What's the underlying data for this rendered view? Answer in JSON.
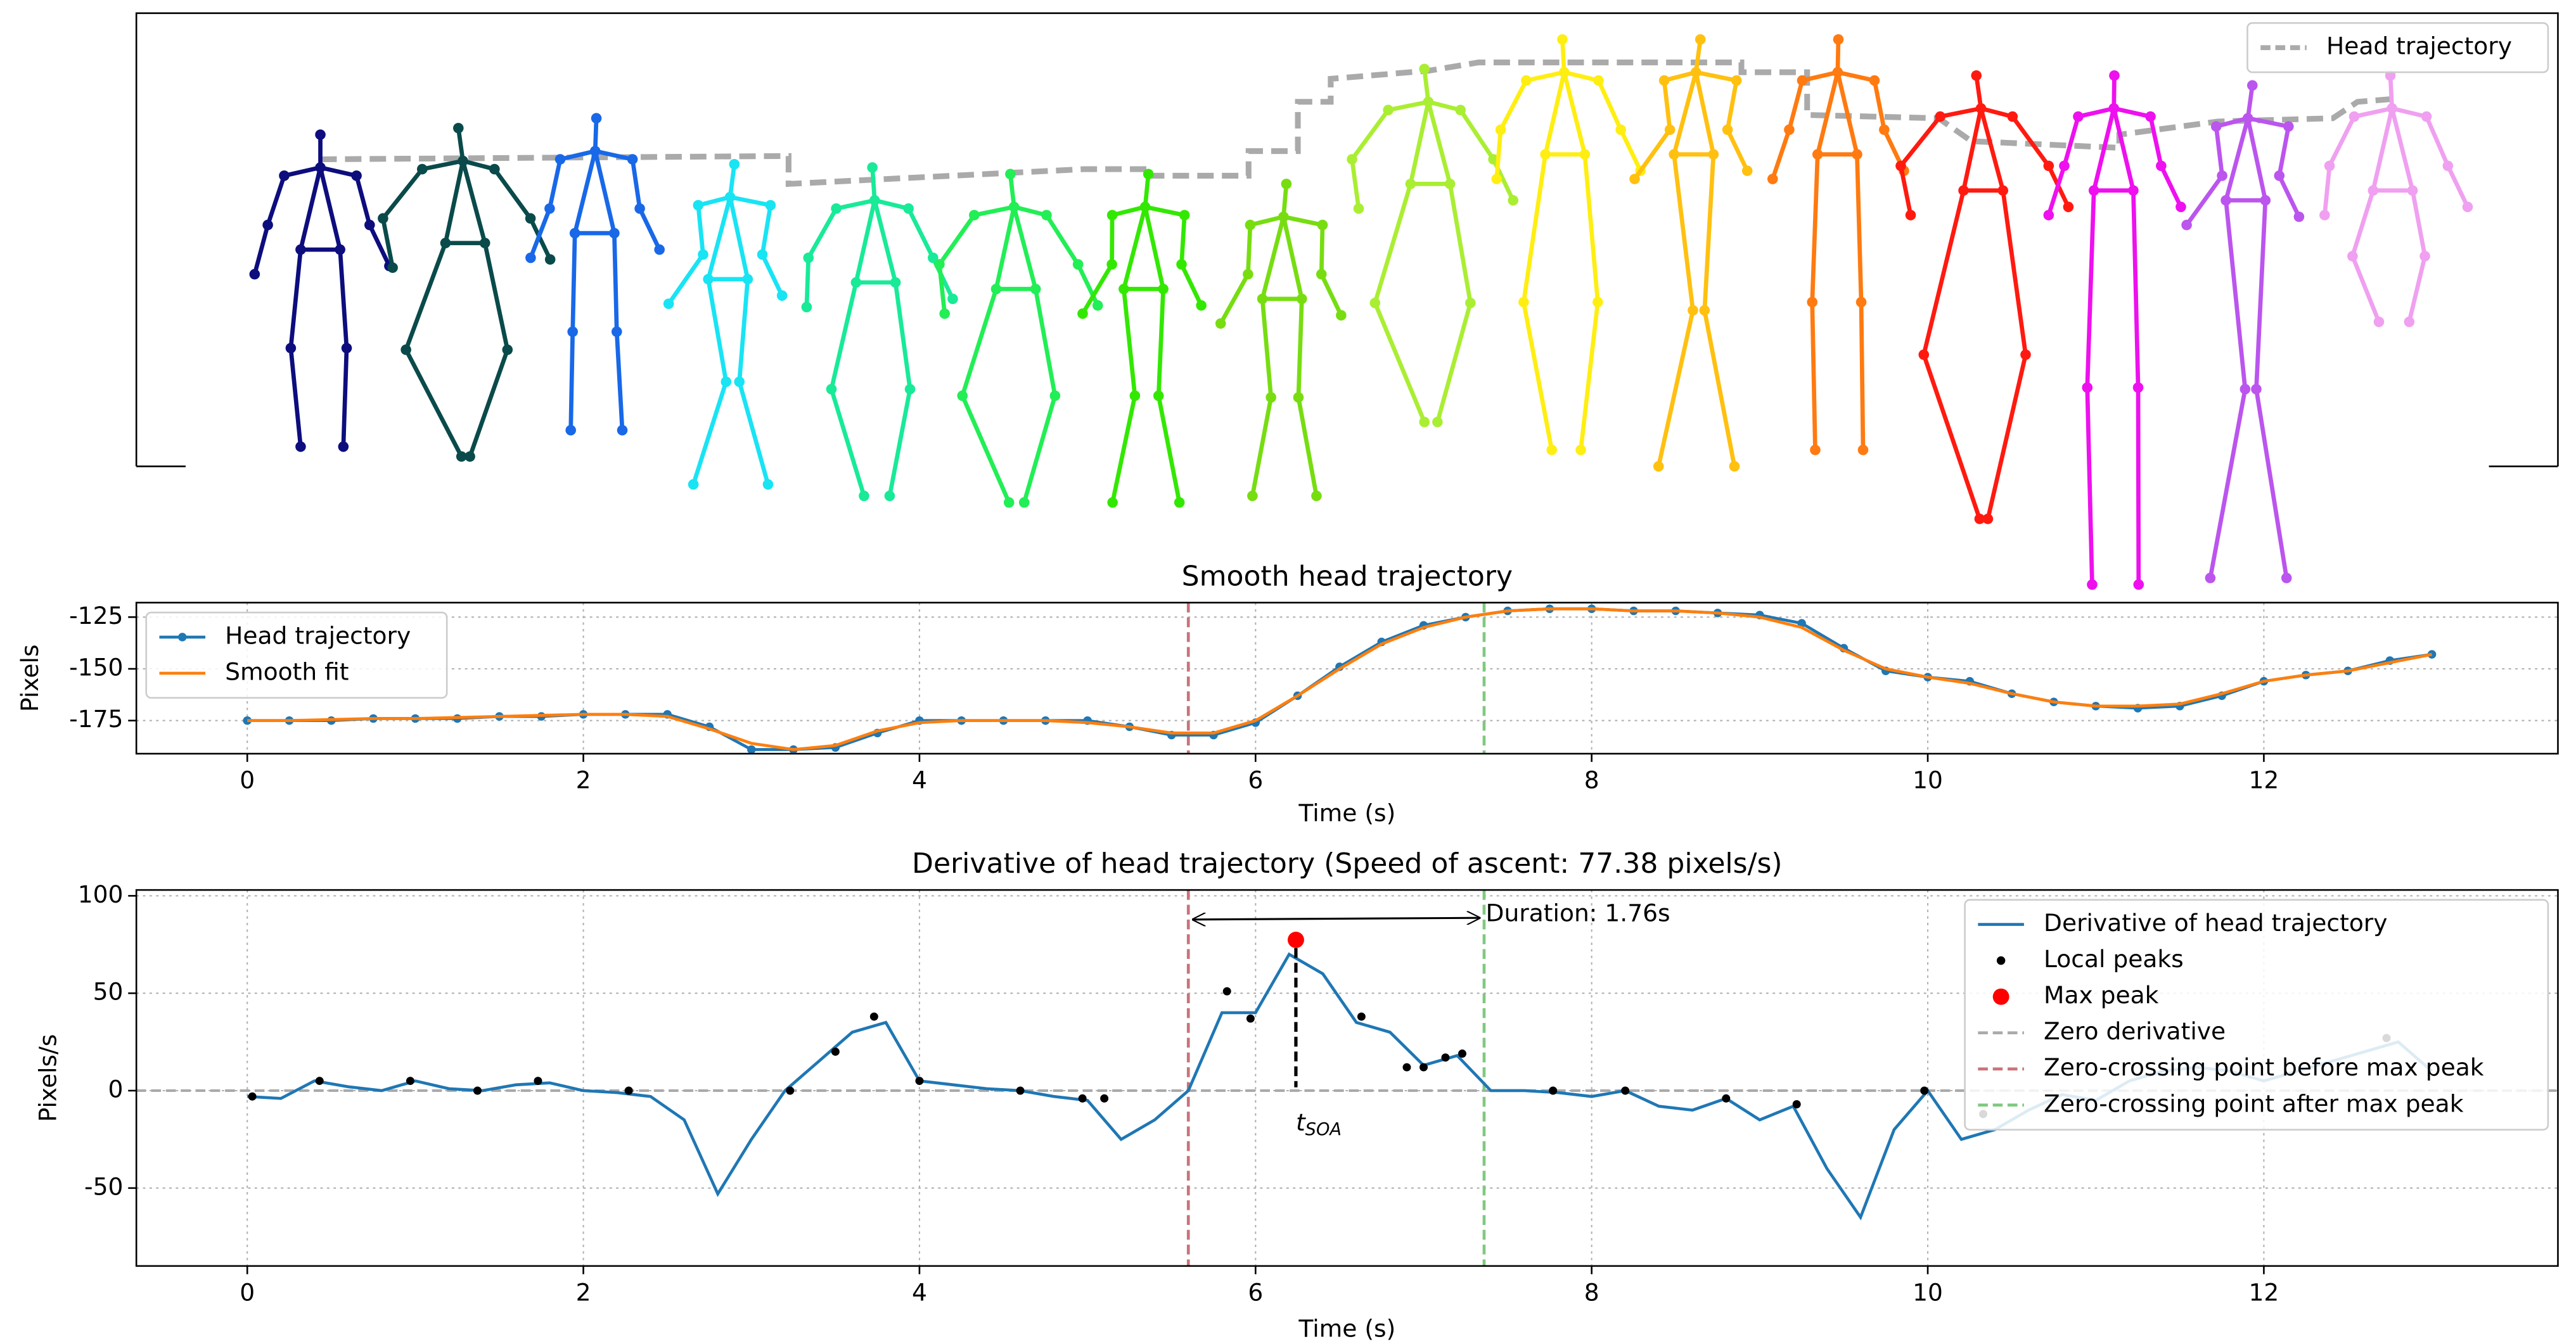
{
  "chart_data": [
    {
      "type": "skeleton",
      "series": [
        {
          "name": "Head trajectory",
          "color": "#aaaaaa"
        }
      ],
      "colors": [
        "#0d0d7e",
        "#0a4a4a",
        "#1868e8",
        "#18e4f4",
        "#18ea98",
        "#22ee55",
        "#33e800",
        "#77dd11",
        "#aaee33",
        "#ffee11",
        "#ffc010",
        "#ff7a10",
        "#ff1a10",
        "#ee10ee",
        "#bb55ee",
        "#f0a0f0"
      ],
      "legend": "upper right"
    },
    {
      "type": "line",
      "title": "Smooth head trajectory",
      "xlabel": "Time (s)",
      "ylabel": "Pixels",
      "x": [
        0,
        0.25,
        0.5,
        0.75,
        1,
        1.25,
        1.5,
        1.75,
        2,
        2.25,
        2.5,
        2.75,
        3,
        3.25,
        3.5,
        3.75,
        4,
        4.25,
        4.5,
        4.75,
        5,
        5.25,
        5.5,
        5.75,
        6,
        6.25,
        6.5,
        6.75,
        7,
        7.25,
        7.5,
        7.75,
        8,
        8.25,
        8.5,
        8.75,
        9,
        9.25,
        9.5,
        9.75,
        10,
        10.25,
        10.5,
        10.75,
        11,
        11.25,
        11.5,
        11.75,
        12,
        12.25,
        12.5,
        12.75,
        13
      ],
      "series": [
        {
          "name": "Head trajectory",
          "color": "#1f77b4",
          "marker": "o",
          "values": [
            -175,
            -175,
            -175,
            -174,
            -174,
            -174,
            -173,
            -173,
            -172,
            -172,
            -172,
            -178,
            -189,
            -189,
            -188,
            -181,
            -175,
            -175,
            -175,
            -175,
            -175,
            -178,
            -182,
            -182,
            -176,
            -163,
            -149,
            -137,
            -129,
            -125,
            -122,
            -121,
            -121,
            -122,
            -122,
            -123,
            -124,
            -128,
            -140,
            -151,
            -154,
            -156,
            -162,
            -166,
            -168,
            -169,
            -168,
            -163,
            -156,
            -153,
            -151,
            -146,
            -143
          ]
        },
        {
          "name": "Smooth fit",
          "color": "#ff7f0e",
          "values": [
            -175,
            -175,
            -174.5,
            -174,
            -174,
            -173.5,
            -173,
            -172.5,
            -172,
            -172,
            -173,
            -179,
            -186,
            -189,
            -187,
            -180,
            -176,
            -175,
            -175,
            -175,
            -176,
            -178,
            -181,
            -181,
            -175,
            -163,
            -150,
            -138,
            -130,
            -125,
            -122,
            -121,
            -121,
            -122,
            -122,
            -123,
            -125,
            -130,
            -141,
            -150,
            -154,
            -157,
            -162,
            -166,
            -168,
            -168,
            -167,
            -162,
            -156,
            -153,
            -151,
            -147,
            -143
          ]
        }
      ],
      "vlines": [
        {
          "x": 5.6,
          "color": "#c9737a"
        },
        {
          "x": 7.36,
          "color": "#7fc97f"
        }
      ],
      "xlim": [
        -0.66,
        13.75
      ],
      "ylim": [
        -191,
        -118
      ],
      "xticks": [
        0,
        2,
        4,
        6,
        8,
        10,
        12
      ],
      "yticks": [
        -175,
        -150,
        -125
      ],
      "grid": true,
      "legend": "upper left"
    },
    {
      "type": "line",
      "title": "Derivative of head trajectory (Speed of ascent: 77.38 pixels/s)",
      "xlabel": "Time (s)",
      "ylabel": "Pixels/s",
      "x": [
        0,
        0.2,
        0.4,
        0.6,
        0.8,
        1,
        1.2,
        1.4,
        1.6,
        1.8,
        2,
        2.2,
        2.4,
        2.6,
        2.8,
        3,
        3.2,
        3.4,
        3.6,
        3.8,
        4,
        4.2,
        4.4,
        4.6,
        4.8,
        5,
        5.2,
        5.4,
        5.6,
        5.8,
        6,
        6.2,
        6.4,
        6.6,
        6.8,
        7,
        7.2,
        7.4,
        7.6,
        7.8,
        8,
        8.2,
        8.4,
        8.6,
        8.8,
        9,
        9.2,
        9.4,
        9.6,
        9.8,
        10,
        10.2,
        10.4,
        10.6,
        10.8,
        11,
        11.2,
        11.4,
        11.6,
        11.8,
        12,
        12.2,
        12.4,
        12.6,
        12.8,
        13
      ],
      "series": [
        {
          "name": "Derivative of head trajectory",
          "color": "#1f77b4",
          "values": [
            -3,
            -4,
            5,
            2,
            0,
            5,
            1,
            0,
            3,
            4,
            0,
            -1,
            -3,
            -15,
            -53,
            -25,
            0,
            15,
            30,
            35,
            5,
            3,
            1,
            0,
            -3,
            -5,
            -25,
            -15,
            0,
            40,
            40,
            70,
            60,
            35,
            30,
            13,
            18,
            0,
            0,
            -1,
            -3,
            0,
            -8,
            -10,
            -4,
            -15,
            -8,
            -40,
            -65,
            -20,
            0,
            -25,
            -20,
            -10,
            -2,
            -5,
            5,
            10,
            12,
            10,
            5,
            10,
            15,
            20,
            25,
            10
          ]
        },
        {
          "name": "Local peaks",
          "color": "#000000",
          "line": false,
          "marker": "o",
          "x": [
            0.03,
            0.43,
            0.97,
            1.37,
            1.73,
            2.27,
            3.23,
            3.5,
            3.73,
            4.0,
            4.6,
            4.97,
            5.1,
            5.83,
            5.97,
            6.63,
            6.9,
            7.0,
            7.13,
            7.23,
            7.77,
            8.2,
            8.8,
            9.22,
            9.98,
            10.33,
            12.73
          ],
          "values": [
            -3,
            5,
            5,
            0,
            5,
            0,
            0,
            20,
            38,
            5,
            0,
            -4,
            -4,
            51,
            37,
            38,
            12,
            12,
            17,
            19,
            0,
            0,
            -4,
            -7,
            0,
            -12,
            27
          ]
        },
        {
          "name": "Max peak",
          "color": "#ff0000",
          "line": false,
          "marker": "O",
          "x": [
            6.24
          ],
          "values": [
            77.38
          ]
        }
      ],
      "hlines": [
        {
          "name": "Zero derivative",
          "y": 0,
          "color": "#aaaaaa"
        }
      ],
      "vlines": [
        {
          "name": "Zero-crossing point before max peak",
          "x": 5.6,
          "color": "#c9737a"
        },
        {
          "name": "Zero-crossing point after max peak",
          "x": 7.36,
          "color": "#7fc97f"
        }
      ],
      "annotations": {
        "duration": "Duration: 1.76s",
        "stem": {
          "text": "t",
          "subscript": "SOA"
        }
      },
      "xlim": [
        -0.66,
        13.75
      ],
      "ylim": [
        -90,
        103
      ],
      "xticks": [
        0,
        2,
        4,
        6,
        8,
        10,
        12
      ],
      "yticks": [
        -50,
        0,
        50,
        100
      ],
      "grid": true,
      "legend": "upper right"
    }
  ]
}
